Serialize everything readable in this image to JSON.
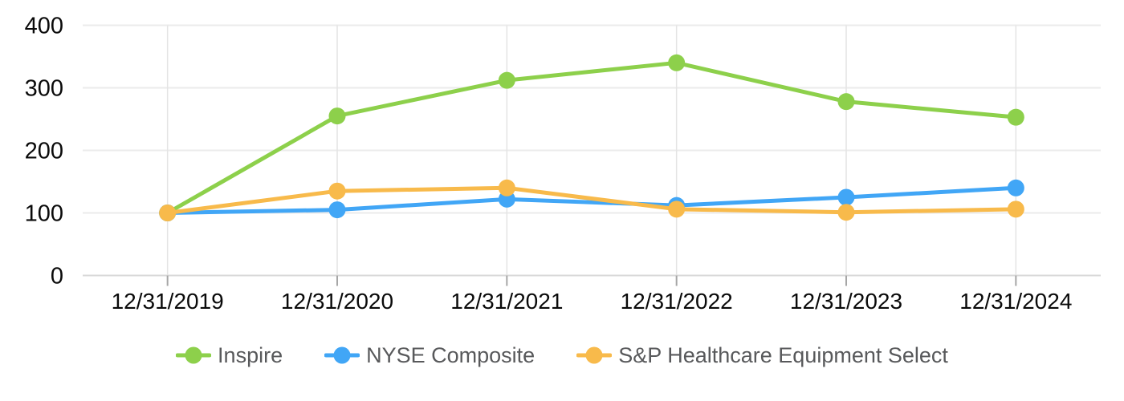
{
  "page": {
    "background_color": "#FFFFFF"
  },
  "chart_data": {
    "type": "line",
    "title": "",
    "xlabel": "",
    "ylabel": "",
    "categories": [
      "12/31/2019",
      "12/31/2020",
      "12/31/2021",
      "12/31/2022",
      "12/31/2023",
      "12/31/2024"
    ],
    "series": [
      {
        "name": "Inspire",
        "color": "#8DD04B",
        "values": [
          100,
          255,
          312,
          340,
          278,
          253
        ]
      },
      {
        "name": "NYSE Composite",
        "color": "#41A6F6",
        "values": [
          100,
          105,
          122,
          112,
          125,
          140
        ]
      },
      {
        "name": "S&P Healthcare Equipment Select",
        "color": "#F8BA4B",
        "values": [
          100,
          135,
          140,
          106,
          101,
          106
        ]
      }
    ],
    "ylim": [
      0,
      400
    ],
    "yticks": [
      0,
      100,
      200,
      300,
      400
    ],
    "grid": true,
    "legend_position": "bottom",
    "colors": {
      "axis_label_text": "#0A0A0A",
      "legend_text": "#58595B",
      "h_gridline": "#EBEBEB",
      "v_gridline": "#E4E4E4",
      "zero_axis_line": "#D9D9D9",
      "x_tick_mark": "#A6A6A6"
    }
  }
}
